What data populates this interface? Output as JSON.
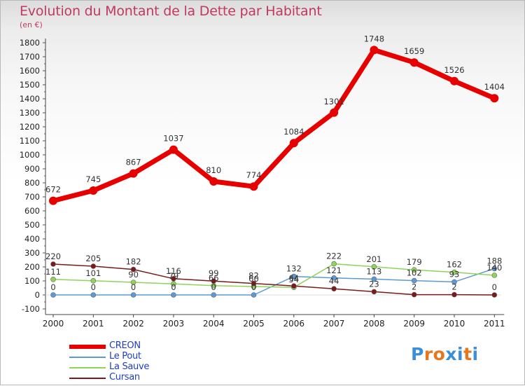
{
  "title": "Evolution du Montant de la Dette par Habitant",
  "unit": "(en €)",
  "logo": {
    "text": "Proxiti",
    "letters": [
      "P",
      "r",
      "o",
      "x",
      "i",
      "t",
      "i"
    ],
    "colors": [
      "#3b8fd9",
      "#e8761e",
      "#e8761e",
      "#3b8fd9",
      "#3b8fd9",
      "#e8761e",
      "#3b8fd9"
    ]
  },
  "chart_data": {
    "type": "line",
    "title": "Evolution du Montant de la Dette par Habitant",
    "ylabel": "(en €)",
    "xlabel": "",
    "ylim": [
      -100,
      1800
    ],
    "yticks": [
      -100,
      0,
      100,
      200,
      300,
      400,
      500,
      600,
      700,
      800,
      900,
      1000,
      1100,
      1200,
      1300,
      1400,
      1500,
      1600,
      1700,
      1800
    ],
    "categories": [
      "2000",
      "2001",
      "2002",
      "2003",
      "2004",
      "2005",
      "2006",
      "2007",
      "2008",
      "2009",
      "2010",
      "2011"
    ],
    "legend_position": "bottom-left",
    "series": [
      {
        "name": "CREON",
        "color": "#e60000",
        "width": 7,
        "marker": 6,
        "values": [
          672,
          745,
          867,
          1037,
          810,
          774,
          1084,
          1301,
          1748,
          1659,
          1526,
          1404
        ],
        "labels": [
          "672",
          "745",
          "867",
          "1037",
          "810",
          "774",
          "1084",
          "1301",
          "1748",
          "1659",
          "1526",
          "1404"
        ]
      },
      {
        "name": "Le Pout",
        "color": "#5b9ad5",
        "width": 1.5,
        "marker": 3.5,
        "values": [
          0,
          0,
          0,
          0,
          0,
          0,
          132,
          121,
          113,
          102,
          93,
          188
        ],
        "labels": [
          "0",
          "0",
          "0",
          "0",
          "0",
          "0",
          "132",
          "121",
          "113",
          "102",
          "93",
          "188"
        ]
      },
      {
        "name": "La Sauve",
        "color": "#8fd45a",
        "width": 1.5,
        "marker": 3.5,
        "values": [
          111,
          101,
          90,
          79,
          66,
          60,
          54,
          222,
          201,
          179,
          162,
          140
        ],
        "labels": [
          "111",
          "101",
          "90",
          "79",
          "66",
          "60",
          "54",
          "222",
          "201",
          "179",
          "162",
          "140"
        ]
      },
      {
        "name": "Cursan",
        "color": "#7a1a1a",
        "width": 1.5,
        "marker": 3.5,
        "values": [
          220,
          205,
          182,
          116,
          99,
          82,
          64,
          44,
          23,
          2,
          2,
          0
        ],
        "labels": [
          "220",
          "205",
          "182",
          "116",
          "99",
          "82",
          "64",
          "44",
          "23",
          "2",
          "2",
          "0"
        ]
      }
    ]
  }
}
